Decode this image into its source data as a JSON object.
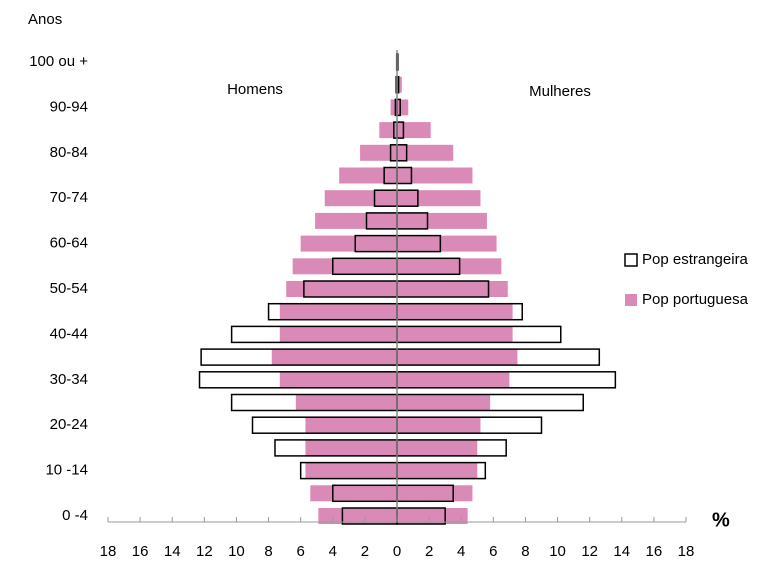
{
  "chart_data": {
    "type": "pyramid",
    "y_title": "Anos",
    "x_unit": "%",
    "left_label": "Homens",
    "right_label": "Mulheres",
    "categories": [
      "0 -4",
      null,
      "10 -14",
      null,
      "20-24",
      null,
      "30-34",
      null,
      "40-44",
      null,
      "50-54",
      null,
      "60-64",
      null,
      "70-74",
      null,
      "80-84",
      null,
      "90-94",
      null,
      "100 ou +"
    ],
    "series": [
      {
        "name": "Pop portuguesa",
        "color": "#da8ab7",
        "outline": false,
        "men": [
          4.9,
          5.4,
          5.7,
          5.7,
          5.7,
          6.3,
          7.3,
          7.8,
          7.3,
          7.3,
          6.9,
          6.5,
          6.0,
          5.1,
          4.5,
          3.6,
          2.3,
          1.1,
          0.4,
          0.1,
          0.05
        ],
        "women": [
          4.4,
          4.7,
          5.0,
          5.0,
          5.2,
          5.8,
          7.0,
          7.5,
          7.2,
          7.2,
          6.9,
          6.5,
          6.2,
          5.6,
          5.2,
          4.7,
          3.5,
          2.1,
          0.7,
          0.3,
          0.1
        ]
      },
      {
        "name": "Pop estrangeira",
        "color": "#000000",
        "outline": true,
        "men": [
          3.4,
          4.0,
          6.0,
          7.6,
          9.0,
          10.3,
          12.3,
          12.2,
          10.3,
          8.0,
          5.8,
          4.0,
          2.6,
          1.9,
          1.4,
          0.8,
          0.4,
          0.2,
          0.1,
          0.05,
          0.02
        ],
        "women": [
          3.0,
          3.5,
          5.5,
          6.8,
          9.0,
          11.6,
          13.6,
          12.6,
          10.2,
          7.8,
          5.7,
          3.9,
          2.7,
          1.9,
          1.3,
          0.9,
          0.6,
          0.4,
          0.2,
          0.1,
          0.05
        ]
      }
    ],
    "xlim": [
      -18,
      18
    ],
    "xticks": [
      {
        "value": -18,
        "label": "18"
      },
      {
        "value": -16,
        "label": "16"
      },
      {
        "value": -14,
        "label": "14"
      },
      {
        "value": -12,
        "label": "12"
      },
      {
        "value": -10,
        "label": "10"
      },
      {
        "value": -8,
        "label": "8"
      },
      {
        "value": -6,
        "label": "6"
      },
      {
        "value": -4,
        "label": "4"
      },
      {
        "value": -2,
        "label": "2"
      },
      0,
      2,
      4,
      6,
      8,
      10,
      12,
      14,
      16,
      18
    ],
    "legend": "right"
  }
}
